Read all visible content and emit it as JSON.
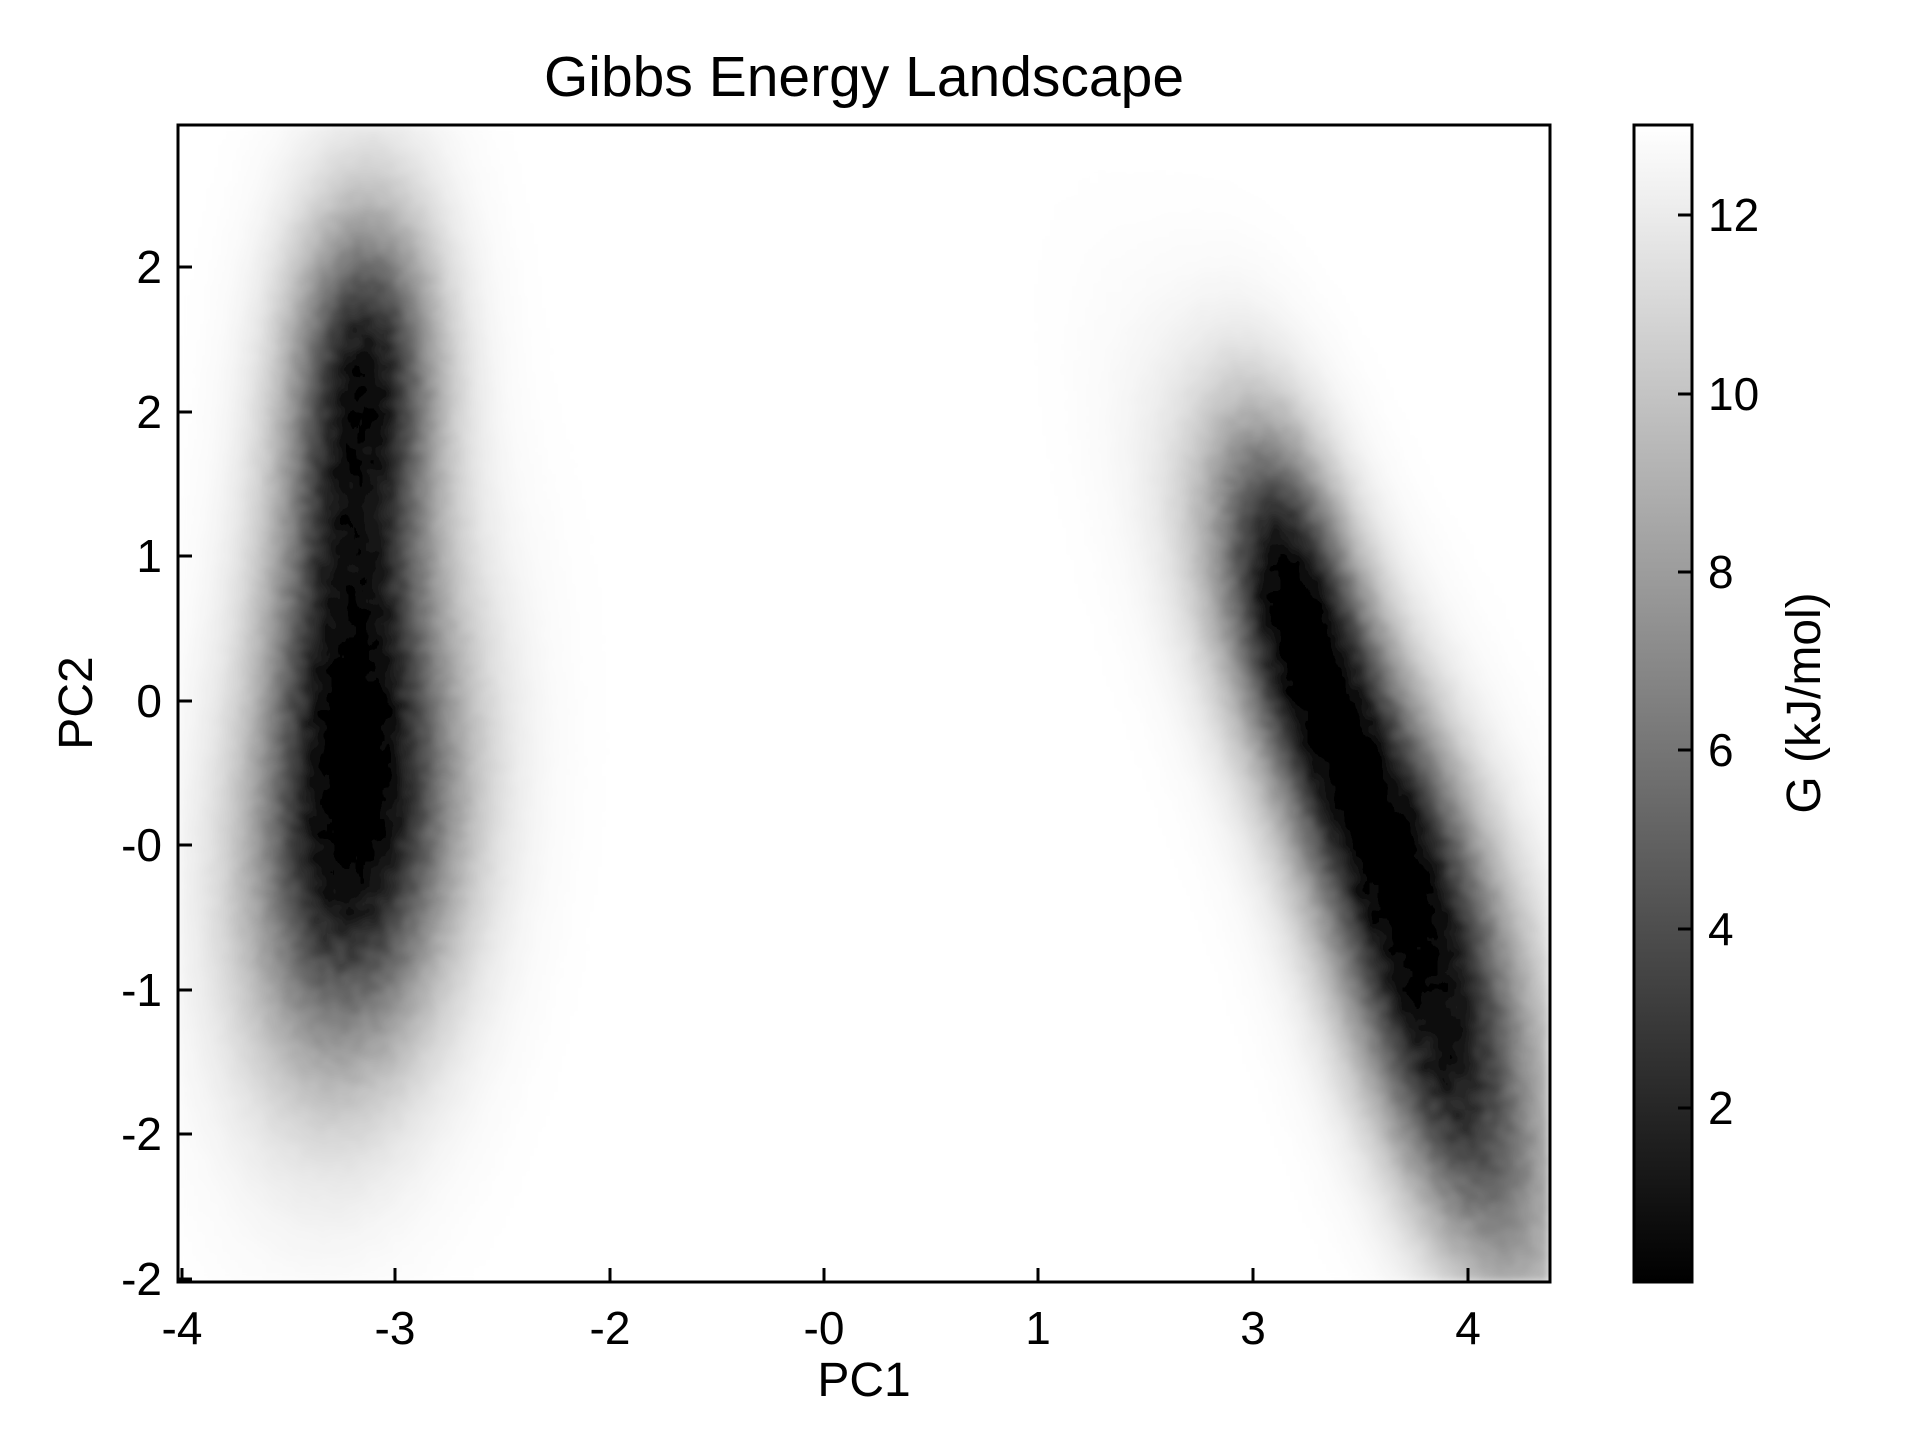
{
  "chart_data": {
    "type": "heatmap",
    "title": "Gibbs Energy Landscape",
    "xlabel": "PC1",
    "ylabel": "PC2",
    "x_ticks": [
      "-4",
      "-3",
      "-2",
      "-0",
      "1",
      "3",
      "4"
    ],
    "y_ticks": [
      "-2",
      "-2",
      "-1",
      "-0",
      "0",
      "1",
      "2",
      "2"
    ],
    "xlim": [
      -4.0,
      4.4
    ],
    "ylim": [
      -2.3,
      2.7
    ],
    "colormap": "grayscale (black = low G, white = high G)",
    "colorbar": {
      "label": "G (kJ/mol)",
      "ticks": [
        "2",
        "4",
        "6",
        "8",
        "10",
        "12"
      ],
      "range": [
        0.1,
        12.9
      ]
    },
    "basins": [
      {
        "center_pc1": -2.9,
        "center_pc2": -0.35,
        "sigma_along": 0.7,
        "sigma_across": 0.42,
        "tilt_deg": 80,
        "depth": 12.5
      },
      {
        "center_pc1": -2.95,
        "center_pc2": 0.9,
        "sigma_along": 0.75,
        "sigma_across": 0.32,
        "tilt_deg": 85,
        "depth": 9.2
      },
      {
        "center_pc1": -2.85,
        "center_pc2": 1.7,
        "sigma_along": 0.45,
        "sigma_across": 0.3,
        "tilt_deg": 90,
        "depth": 7.0
      },
      {
        "center_pc1": 3.3,
        "center_pc2": -0.2,
        "sigma_along": 0.9,
        "sigma_across": 0.32,
        "tilt_deg": -55,
        "depth": 13.0
      },
      {
        "center_pc1": 3.75,
        "center_pc2": -1.45,
        "sigma_along": 0.75,
        "sigma_across": 0.3,
        "tilt_deg": -60,
        "depth": 8.8
      },
      {
        "center_pc1": 2.8,
        "center_pc2": 0.8,
        "sigma_along": 0.5,
        "sigma_across": 0.25,
        "tilt_deg": -70,
        "depth": 8.0
      }
    ]
  }
}
